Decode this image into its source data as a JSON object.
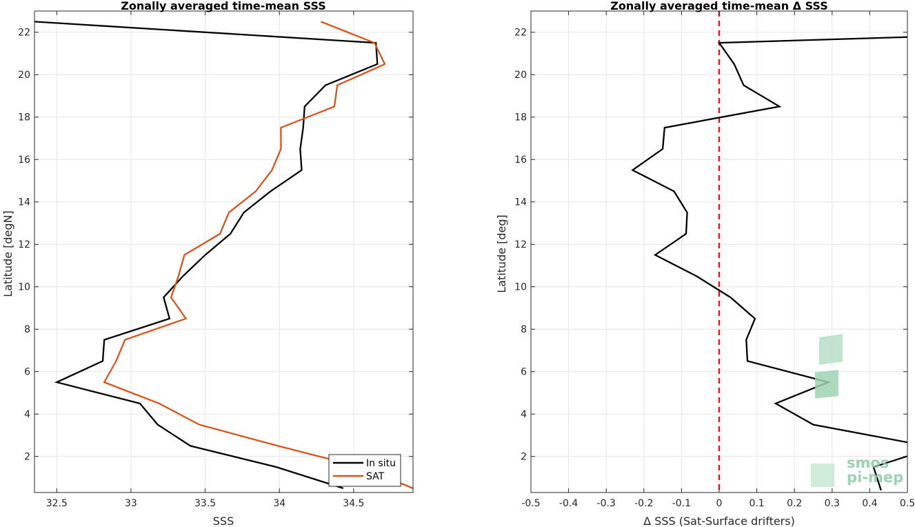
{
  "chart_data": [
    {
      "type": "line",
      "title": "Zonally averaged time-mean SSS",
      "xlabel": "SSS",
      "ylabel": "Latitude [degN]",
      "xlim": [
        32.35,
        34.9
      ],
      "ylim": [
        0.3,
        23
      ],
      "xticks": [
        "32.5",
        "33",
        "33.5",
        "34",
        "34.5"
      ],
      "xtick_values": [
        32.5,
        33,
        33.5,
        34,
        34.5
      ],
      "yticks": [
        "2",
        "4",
        "6",
        "8",
        "10",
        "12",
        "14",
        "16",
        "18",
        "20",
        "22"
      ],
      "ytick_values": [
        2,
        4,
        6,
        8,
        10,
        12,
        14,
        16,
        18,
        20,
        22
      ],
      "grid": true,
      "legend_position": "bottom-right",
      "series": [
        {
          "name": "In situ",
          "color": "#000000",
          "points": [
            [
              34.43,
              0.5
            ],
            [
              33.98,
              1.5
            ],
            [
              33.4,
              2.5
            ],
            [
              33.18,
              3.5
            ],
            [
              33.06,
              4.5
            ],
            [
              32.5,
              5.5
            ],
            [
              32.81,
              6.5
            ],
            [
              32.82,
              7.5
            ],
            [
              33.26,
              8.5
            ],
            [
              33.22,
              9.5
            ],
            [
              33.35,
              10.5
            ],
            [
              33.5,
              11.5
            ],
            [
              33.67,
              12.5
            ],
            [
              33.76,
              13.5
            ],
            [
              33.94,
              14.5
            ],
            [
              34.15,
              15.5
            ],
            [
              34.14,
              16.5
            ],
            [
              34.16,
              17.5
            ],
            [
              34.17,
              18.5
            ],
            [
              34.31,
              19.5
            ],
            [
              34.66,
              20.5
            ],
            [
              34.65,
              21.5
            ],
            [
              32.35,
              22.5
            ]
          ]
        },
        {
          "name": "SAT",
          "color": "#d95319",
          "points": [
            [
              34.9,
              0.5
            ],
            [
              34.55,
              1.5
            ],
            [
              33.99,
              2.5
            ],
            [
              33.46,
              3.5
            ],
            [
              33.19,
              4.5
            ],
            [
              32.82,
              5.5
            ],
            [
              32.9,
              6.5
            ],
            [
              32.96,
              7.5
            ],
            [
              33.37,
              8.5
            ],
            [
              33.27,
              9.5
            ],
            [
              33.32,
              10.5
            ],
            [
              33.36,
              11.5
            ],
            [
              33.6,
              12.5
            ],
            [
              33.66,
              13.5
            ],
            [
              33.84,
              14.5
            ],
            [
              33.95,
              15.5
            ],
            [
              34.01,
              16.5
            ],
            [
              34.01,
              17.5
            ],
            [
              34.37,
              18.5
            ],
            [
              34.39,
              19.5
            ],
            [
              34.71,
              20.5
            ],
            [
              34.64,
              21.5
            ],
            [
              34.28,
              22.5
            ]
          ]
        }
      ]
    },
    {
      "type": "line",
      "title": "Zonally averaged time-mean Δ SSS",
      "xlabel": "Δ SSS (Sat-Surface drifters)",
      "ylabel": "Latitude [deg]",
      "xlim": [
        -0.5,
        0.5
      ],
      "ylim": [
        0.3,
        23
      ],
      "xticks": [
        "-0.5",
        "-0.4",
        "-0.3",
        "-0.2",
        "-0.1",
        "0",
        "0.1",
        "0.2",
        "0.3",
        "0.4",
        "0.5"
      ],
      "xtick_values": [
        -0.5,
        -0.4,
        -0.3,
        -0.2,
        -0.1,
        0,
        0.1,
        0.2,
        0.3,
        0.4,
        0.5
      ],
      "yticks": [
        "2",
        "4",
        "6",
        "8",
        "10",
        "12",
        "14",
        "16",
        "18",
        "20",
        "22"
      ],
      "ytick_values": [
        2,
        4,
        6,
        8,
        10,
        12,
        14,
        16,
        18,
        20,
        22
      ],
      "grid": true,
      "reference_line": {
        "x": 0,
        "color": "#e8141e",
        "style": "dashed"
      },
      "series": [
        {
          "color": "#000000",
          "points": [
            [
              0.43,
              0.4
            ],
            [
              0.41,
              1.5
            ],
            [
              0.55,
              2.3
            ],
            [
              0.55,
              2.5
            ],
            [
              0.25,
              3.5
            ],
            [
              0.15,
              4.5
            ],
            [
              0.29,
              5.5
            ],
            [
              0.075,
              6.5
            ],
            [
              0.072,
              7.5
            ],
            [
              0.095,
              8.5
            ],
            [
              0.03,
              9.5
            ],
            [
              -0.06,
              10.5
            ],
            [
              -0.17,
              11.5
            ],
            [
              -0.088,
              12.5
            ],
            [
              -0.085,
              13.5
            ],
            [
              -0.12,
              14.5
            ],
            [
              -0.23,
              15.5
            ],
            [
              -0.15,
              16.5
            ],
            [
              -0.145,
              17.5
            ],
            [
              0.16,
              18.5
            ],
            [
              0.065,
              19.5
            ],
            [
              0.04,
              20.5
            ],
            [
              0.0,
              21.5
            ],
            [
              0.55,
              21.8
            ]
          ]
        }
      ]
    }
  ],
  "logo": {
    "line1": "smos",
    "line2": "pi-mep",
    "color": "#8cc9a8"
  }
}
